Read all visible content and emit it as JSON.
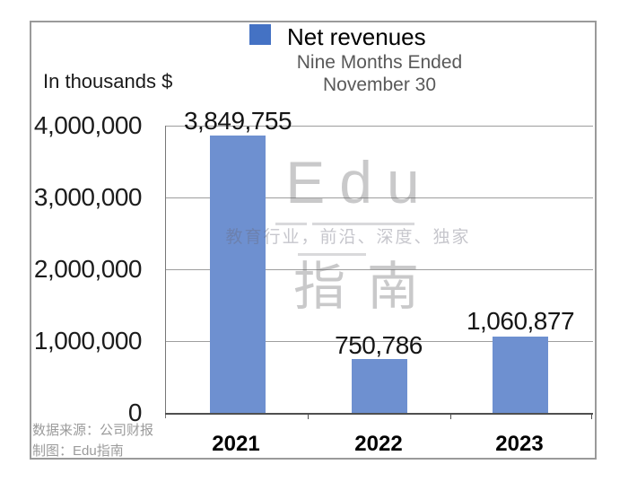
{
  "header": {
    "unit_label": "In thousands $",
    "legend_label": "Net revenues",
    "subtitle_line1": "Nine Months Ended",
    "subtitle_line2": "November 30"
  },
  "footer": {
    "source_line1": "数据来源：公司财报",
    "source_line2": "制图：Edu指南"
  },
  "watermark": {
    "brand_top": "Edu",
    "tagline": "教育行业，前沿、深度、独家",
    "brand_bottom": "指南"
  },
  "colors": {
    "bar": "#6e90d0",
    "legend_swatch": "#4472c4",
    "gridline": "#9e9e9e",
    "axis": "#4f4f4f",
    "subtitle_text": "#595959",
    "source_text": "#9b9b9b"
  },
  "chart_data": {
    "type": "bar",
    "title": "Net revenues",
    "subtitle": "Nine Months Ended November 30",
    "unit": "In thousands $",
    "categories": [
      "2021",
      "2022",
      "2023"
    ],
    "values": [
      3849755,
      750786,
      1060877
    ],
    "value_labels": [
      "3,849,755",
      "750,786",
      "1,060,877"
    ],
    "ylim": [
      0,
      4000000
    ],
    "ytick_labels": [
      "4,000,000",
      "3,000,000",
      "2,000,000",
      "1,000,000",
      "0"
    ],
    "xlabel": "",
    "ylabel": "",
    "grid": true,
    "legend_position": "top",
    "bar_color": "#6e90d0"
  }
}
